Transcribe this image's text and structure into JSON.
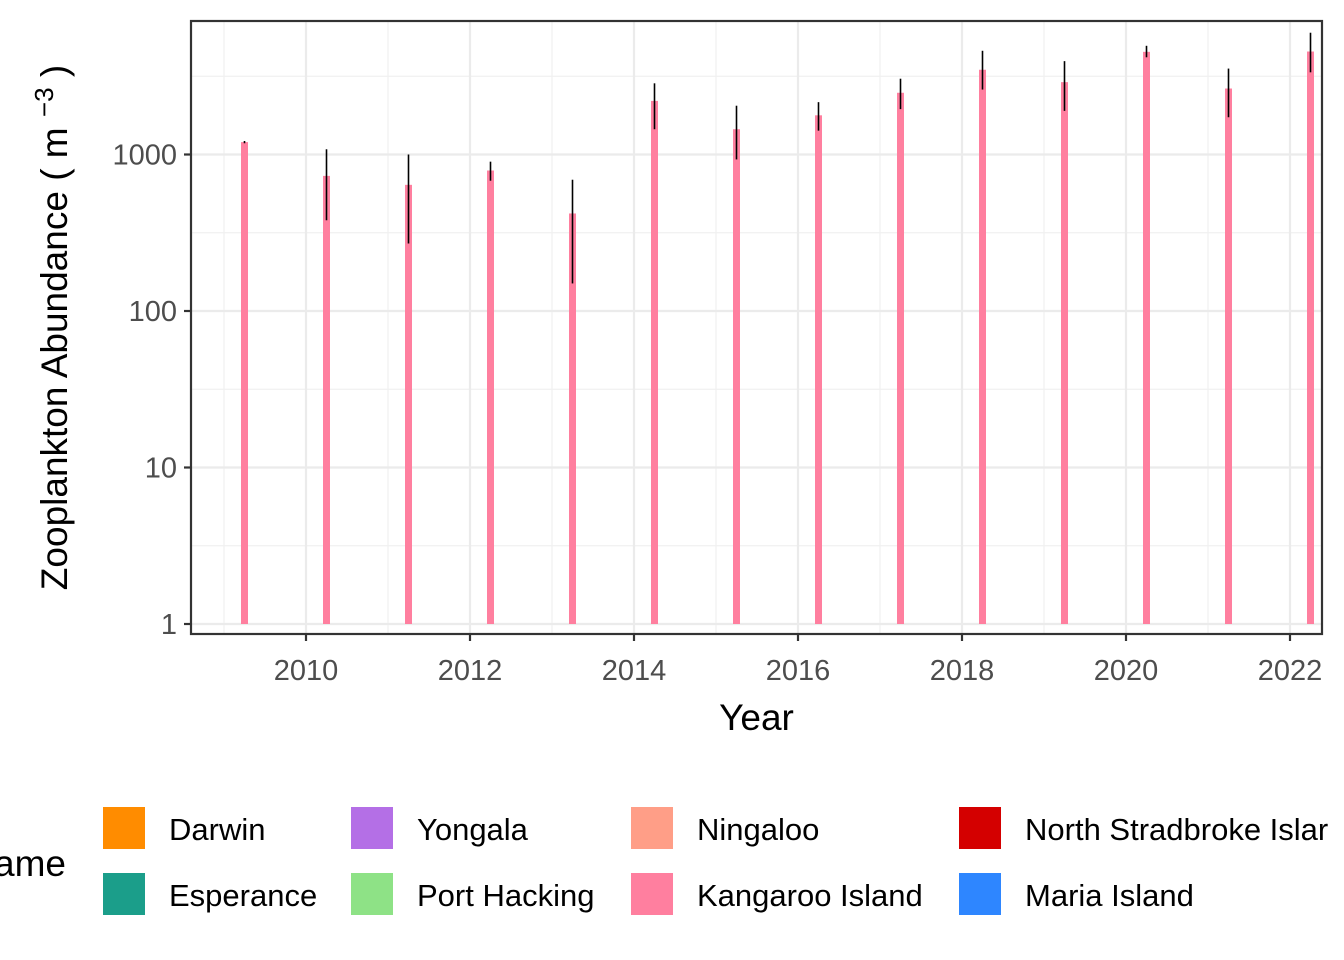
{
  "chart_data": {
    "type": "bar",
    "ylabel": "Zooplankton Abundance",
    "ylabel_unit_base": "m",
    "ylabel_unit_exp": "−3",
    "xlabel": "Year",
    "y_scale": "log10",
    "ylim": [
      1,
      6500
    ],
    "xlim": [
      2008.6,
      2022.45
    ],
    "x_ticks": [
      2010,
      2012,
      2014,
      2016,
      2018,
      2020,
      2022
    ],
    "y_ticks": [
      1,
      10,
      100,
      1000
    ],
    "y_tick_labels": [
      "1",
      "10",
      "100",
      "1000"
    ],
    "grid": true,
    "series": [
      {
        "name": "Kangaroo Island",
        "color": "#FF7F9F",
        "x": [
          2009.25,
          2010.25,
          2011.25,
          2012.25,
          2013.25,
          2014.25,
          2015.25,
          2016.25,
          2017.25,
          2018.25,
          2019.25,
          2020.25,
          2021.25,
          2022.25
        ],
        "values": [
          1200,
          730,
          640,
          790,
          420,
          2200,
          1450,
          1780,
          2480,
          3480,
          2900,
          4530,
          2640,
          4550
        ],
        "error_low": [
          1180,
          380,
          270,
          680,
          150,
          1450,
          930,
          1420,
          1950,
          2600,
          1900,
          4180,
          1730,
          3350
        ],
        "error_high": [
          1220,
          1080,
          1000,
          900,
          690,
          2850,
          2050,
          2160,
          3050,
          4600,
          3950,
          4950,
          3540,
          6000
        ]
      }
    ],
    "legend": {
      "position": "bottom",
      "title": "ame",
      "items": [
        {
          "label": "Darwin",
          "color": "#FF8C00"
        },
        {
          "label": "Esperance",
          "color": "#1B9E8A"
        },
        {
          "label": "Yongala",
          "color": "#B46FE6"
        },
        {
          "label": "Port Hacking",
          "color": "#8EE286"
        },
        {
          "label": "Ningaloo",
          "color": "#FF9E87"
        },
        {
          "label": "Kangaroo Island",
          "color": "#FF7F9F"
        },
        {
          "label": "North Stradbroke Islar",
          "color": "#D40000"
        },
        {
          "label": "Maria Island",
          "color": "#2E86FF"
        }
      ]
    }
  }
}
